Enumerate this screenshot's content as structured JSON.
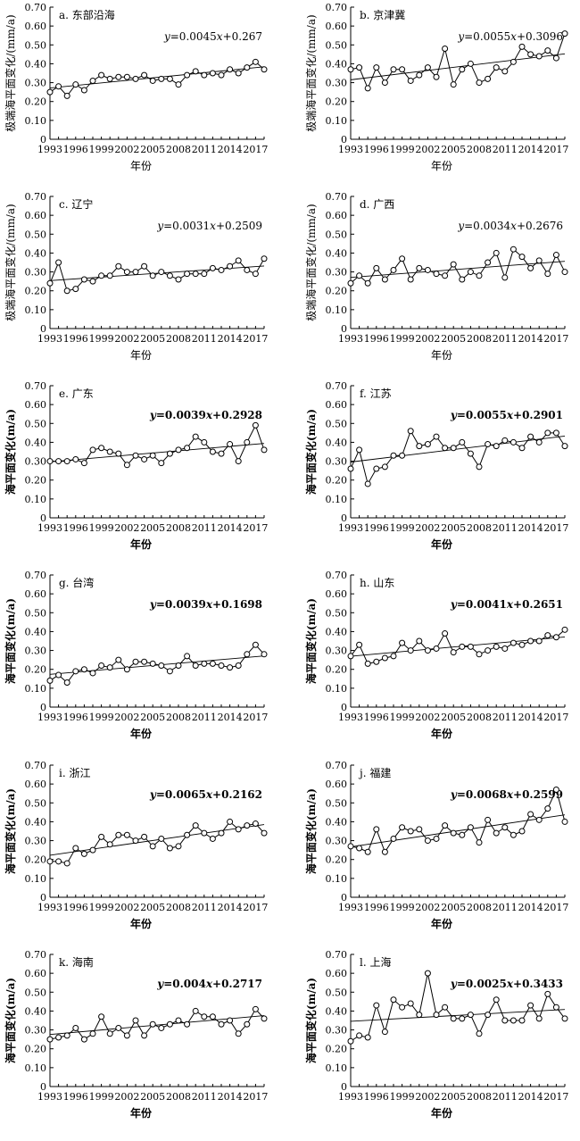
{
  "x_years": [
    1993,
    1994,
    1995,
    1996,
    1997,
    1998,
    1999,
    2000,
    2001,
    2002,
    2003,
    2004,
    2005,
    2006,
    2007,
    2008,
    2009,
    2010,
    2011,
    2012,
    2013,
    2014,
    2015,
    2016,
    2017,
    2018
  ],
  "chart_data": [
    {
      "type": "line",
      "title": "a. 东部沿海",
      "ylabel": "极端海平面变化/(mm/a)",
      "xlabel": "年份",
      "equation": "y=0.0045x+0.267",
      "trend": {
        "slope": 0.0045,
        "intercept": 0.267
      },
      "ylim": [
        0,
        0.7
      ],
      "yticks": [
        "0",
        "0.10",
        "0.20",
        "0.30",
        "0.40",
        "0.50",
        "0.60",
        "0.70"
      ],
      "xticks": [
        "1993",
        "1996",
        "1999",
        "2002",
        "2005",
        "2008",
        "2011",
        "2014",
        "2017"
      ],
      "values": [
        0.25,
        0.28,
        0.23,
        0.29,
        0.26,
        0.31,
        0.34,
        0.32,
        0.33,
        0.33,
        0.32,
        0.34,
        0.31,
        0.32,
        0.32,
        0.29,
        0.34,
        0.36,
        0.34,
        0.35,
        0.34,
        0.37,
        0.35,
        0.38,
        0.41,
        0.37
      ]
    },
    {
      "type": "line",
      "title": "b. 京津冀",
      "ylabel": "极端海平面变化/(mm/a)",
      "xlabel": "年份",
      "equation": "y=0.0055x+0.3096",
      "trend": {
        "slope": 0.0055,
        "intercept": 0.3096
      },
      "ylim": [
        0,
        0.7
      ],
      "yticks": [
        "0",
        "0.10",
        "0.20",
        "0.30",
        "0.40",
        "0.50",
        "0.60",
        "0.70"
      ],
      "xticks": [
        "1993",
        "1996",
        "1999",
        "2002",
        "2005",
        "2008",
        "2011",
        "2014",
        "2017"
      ],
      "values": [
        0.37,
        0.38,
        0.27,
        0.38,
        0.3,
        0.37,
        0.37,
        0.31,
        0.34,
        0.38,
        0.33,
        0.48,
        0.29,
        0.37,
        0.4,
        0.3,
        0.32,
        0.38,
        0.36,
        0.41,
        0.49,
        0.45,
        0.44,
        0.47,
        0.43,
        0.56
      ]
    },
    {
      "type": "line",
      "title": "c. 辽宁",
      "ylabel": "极端海平面变化/(mm/a)",
      "xlabel": "年份",
      "equation": "y=0.0031x+0.2509",
      "trend": {
        "slope": 0.0031,
        "intercept": 0.2509
      },
      "ylim": [
        0,
        0.7
      ],
      "yticks": [
        "0",
        "0.10",
        "0.20",
        "0.30",
        "0.40",
        "0.50",
        "0.60",
        "0.70"
      ],
      "xticks": [
        "1993",
        "1996",
        "1999",
        "2002",
        "2005",
        "2008",
        "2011",
        "2014",
        "2017"
      ],
      "values": [
        0.24,
        0.35,
        0.2,
        0.21,
        0.26,
        0.25,
        0.28,
        0.28,
        0.33,
        0.3,
        0.3,
        0.33,
        0.28,
        0.3,
        0.28,
        0.26,
        0.29,
        0.29,
        0.29,
        0.32,
        0.31,
        0.33,
        0.36,
        0.31,
        0.29,
        0.37
      ]
    },
    {
      "type": "line",
      "title": "d. 广西",
      "ylabel": "极端海平面变化/(mm/a)",
      "xlabel": "年份",
      "equation": "y=0.0034x+0.2676",
      "trend": {
        "slope": 0.0034,
        "intercept": 0.2676
      },
      "ylim": [
        0,
        0.7
      ],
      "yticks": [
        "0",
        "0.10",
        "0.20",
        "0.30",
        "0.40",
        "0.50",
        "0.60",
        "0.70"
      ],
      "xticks": [
        "1993",
        "1996",
        "1999",
        "2002",
        "2005",
        "2008",
        "2011",
        "2014",
        "2017"
      ],
      "values": [
        0.24,
        0.28,
        0.24,
        0.32,
        0.26,
        0.31,
        0.37,
        0.26,
        0.32,
        0.31,
        0.29,
        0.28,
        0.34,
        0.26,
        0.3,
        0.28,
        0.35,
        0.4,
        0.27,
        0.42,
        0.38,
        0.32,
        0.36,
        0.29,
        0.39,
        0.3
      ]
    },
    {
      "type": "line",
      "title": "e. 广东",
      "ylabel": "海平面变化(m/a)",
      "xlabel": "年份",
      "equation": "y=0.0039x+0.2928",
      "trend": {
        "slope": 0.0039,
        "intercept": 0.2928
      },
      "ylim": [
        0,
        0.7
      ],
      "yticks": [
        "0",
        "0.10",
        "0.20",
        "0.30",
        "0.40",
        "0.50",
        "0.60",
        "0.70"
      ],
      "xticks": [
        "1993",
        "1996",
        "1999",
        "2002",
        "2005",
        "2008",
        "2011",
        "2014",
        "2017"
      ],
      "values": [
        0.3,
        0.3,
        0.3,
        0.31,
        0.29,
        0.36,
        0.37,
        0.35,
        0.34,
        0.28,
        0.33,
        0.31,
        0.33,
        0.29,
        0.34,
        0.36,
        0.37,
        0.43,
        0.4,
        0.35,
        0.34,
        0.39,
        0.3,
        0.4,
        0.49,
        0.36
      ]
    },
    {
      "type": "line",
      "title": "f. 江苏",
      "ylabel": "海平面变化(m/a)",
      "xlabel": "年份",
      "equation": "y=0.0055x+0.2901",
      "trend": {
        "slope": 0.0055,
        "intercept": 0.2901
      },
      "ylim": [
        0,
        0.7
      ],
      "yticks": [
        "0",
        "0.10",
        "0.20",
        "0.30",
        "0.40",
        "0.50",
        "0.60",
        "0.70"
      ],
      "xticks": [
        "1993",
        "1996",
        "1999",
        "2002",
        "2005",
        "2008",
        "2011",
        "2014",
        "2017"
      ],
      "values": [
        0.26,
        0.36,
        0.18,
        0.26,
        0.27,
        0.33,
        0.33,
        0.46,
        0.38,
        0.39,
        0.43,
        0.37,
        0.37,
        0.4,
        0.34,
        0.27,
        0.39,
        0.38,
        0.41,
        0.4,
        0.37,
        0.43,
        0.4,
        0.45,
        0.45,
        0.38
      ]
    },
    {
      "type": "line",
      "title": "g. 台湾",
      "ylabel": "海平面变化(m/a)",
      "xlabel": "年份",
      "equation": "y=0.0039x+0.1698",
      "trend": {
        "slope": 0.0039,
        "intercept": 0.1698
      },
      "ylim": [
        0,
        0.7
      ],
      "yticks": [
        "0",
        "0.10",
        "0.20",
        "0.30",
        "0.40",
        "0.50",
        "0.60",
        "0.70"
      ],
      "xticks": [
        "1993",
        "1996",
        "1999",
        "2002",
        "2005",
        "2008",
        "2011",
        "2014",
        "2017"
      ],
      "values": [
        0.14,
        0.17,
        0.13,
        0.19,
        0.2,
        0.18,
        0.22,
        0.21,
        0.25,
        0.2,
        0.24,
        0.24,
        0.23,
        0.22,
        0.19,
        0.22,
        0.27,
        0.22,
        0.23,
        0.23,
        0.22,
        0.21,
        0.22,
        0.28,
        0.33,
        0.28
      ]
    },
    {
      "type": "line",
      "title": "h. 山东",
      "ylabel": "海平面变化(m/a)",
      "xlabel": "年份",
      "equation": "y=0.0041x+0.2651",
      "trend": {
        "slope": 0.0041,
        "intercept": 0.2651
      },
      "ylim": [
        0,
        0.7
      ],
      "yticks": [
        "0",
        "0.10",
        "0.20",
        "0.30",
        "0.40",
        "0.50",
        "0.60",
        "0.70"
      ],
      "xticks": [
        "1993",
        "1996",
        "1999",
        "2002",
        "2005",
        "2008",
        "2011",
        "2014",
        "2017"
      ],
      "values": [
        0.27,
        0.33,
        0.23,
        0.24,
        0.26,
        0.27,
        0.34,
        0.3,
        0.35,
        0.3,
        0.31,
        0.39,
        0.29,
        0.32,
        0.32,
        0.28,
        0.3,
        0.32,
        0.31,
        0.34,
        0.33,
        0.35,
        0.35,
        0.38,
        0.37,
        0.41
      ]
    },
    {
      "type": "line",
      "title": "i. 浙江",
      "ylabel": "海平面变化(m/a)",
      "xlabel": "年份",
      "equation": "y=0.0065x+0.2162",
      "trend": {
        "slope": 0.0065,
        "intercept": 0.2162
      },
      "ylim": [
        0,
        0.7
      ],
      "yticks": [
        "0",
        "0.10",
        "0.20",
        "0.30",
        "0.40",
        "0.50",
        "0.60",
        "0.70"
      ],
      "xticks": [
        "1993",
        "1996",
        "1999",
        "2002",
        "2005",
        "2008",
        "2011",
        "2014",
        "2017"
      ],
      "values": [
        0.19,
        0.19,
        0.18,
        0.26,
        0.23,
        0.25,
        0.32,
        0.28,
        0.33,
        0.33,
        0.3,
        0.32,
        0.27,
        0.31,
        0.26,
        0.27,
        0.33,
        0.38,
        0.34,
        0.31,
        0.34,
        0.4,
        0.36,
        0.38,
        0.39,
        0.34
      ]
    },
    {
      "type": "line",
      "title": "j. 福建",
      "ylabel": "海平面变化(m/a)",
      "xlabel": "年份",
      "equation": "y=0.0068x+0.2599",
      "trend": {
        "slope": 0.0068,
        "intercept": 0.2599
      },
      "ylim": [
        0,
        0.7
      ],
      "yticks": [
        "0",
        "0.10",
        "0.20",
        "0.30",
        "0.40",
        "0.50",
        "0.60",
        "0.70"
      ],
      "xticks": [
        "1993",
        "1996",
        "1999",
        "2002",
        "2005",
        "2008",
        "2011",
        "2014",
        "2017"
      ],
      "values": [
        0.27,
        0.26,
        0.24,
        0.36,
        0.24,
        0.31,
        0.37,
        0.35,
        0.36,
        0.3,
        0.31,
        0.38,
        0.34,
        0.33,
        0.37,
        0.29,
        0.41,
        0.34,
        0.37,
        0.33,
        0.35,
        0.44,
        0.41,
        0.47,
        0.57,
        0.4
      ]
    },
    {
      "type": "line",
      "title": "k. 海南",
      "ylabel": "海平面变化(m/a)",
      "xlabel": "年份",
      "equation": "y=0.004x+0.2717",
      "trend": {
        "slope": 0.004,
        "intercept": 0.2717
      },
      "ylim": [
        0,
        0.7
      ],
      "yticks": [
        "0",
        "0.10",
        "0.20",
        "0.30",
        "0.40",
        "0.50",
        "0.60",
        "0.70"
      ],
      "xticks": [
        "1993",
        "1996",
        "1999",
        "2002",
        "2005",
        "2008",
        "2011",
        "2014",
        "2017"
      ],
      "values": [
        0.25,
        0.26,
        0.27,
        0.31,
        0.25,
        0.28,
        0.37,
        0.28,
        0.31,
        0.27,
        0.35,
        0.27,
        0.33,
        0.31,
        0.33,
        0.35,
        0.33,
        0.4,
        0.37,
        0.37,
        0.33,
        0.35,
        0.28,
        0.33,
        0.41,
        0.36
      ]
    },
    {
      "type": "line",
      "title": "l. 上海",
      "ylabel": "海平面变化(m/a)",
      "xlabel": "年份",
      "equation": "y=0.0025x+0.3433",
      "trend": {
        "slope": 0.0025,
        "intercept": 0.3433
      },
      "ylim": [
        0,
        0.7
      ],
      "yticks": [
        "0",
        "0.10",
        "0.20",
        "0.30",
        "0.40",
        "0.50",
        "0.60",
        "0.70"
      ],
      "xticks": [
        "1993",
        "1996",
        "1999",
        "2002",
        "2005",
        "2008",
        "2011",
        "2014",
        "2017"
      ],
      "values": [
        0.24,
        0.27,
        0.26,
        0.43,
        0.29,
        0.46,
        0.42,
        0.44,
        0.38,
        0.6,
        0.38,
        0.42,
        0.36,
        0.36,
        0.38,
        0.28,
        0.38,
        0.46,
        0.35,
        0.35,
        0.35,
        0.43,
        0.36,
        0.49,
        0.42,
        0.36
      ]
    }
  ]
}
